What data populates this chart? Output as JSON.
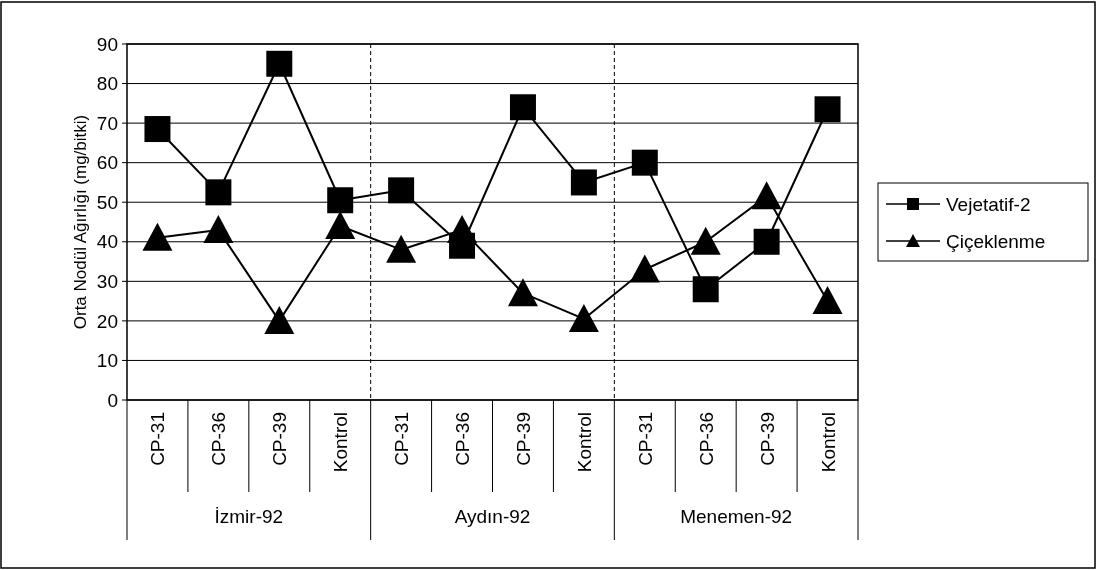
{
  "chart_data": {
    "type": "line",
    "ylabel": "Orta  Nodül Ağırlığı (mg/bitki)",
    "categories": [
      "CP-31",
      "CP-36",
      "CP-39",
      "Kontrol",
      "CP-31",
      "CP-36",
      "CP-39",
      "Kontrol",
      "CP-31",
      "CP-36",
      "CP-39",
      "Kontrol"
    ],
    "annotations": [
      "İzmir-92",
      "Aydın-92",
      "Menemen-92"
    ],
    "series": [
      {
        "name": "Vejetatif-2",
        "color": "#000000",
        "marker": "square",
        "values": [
          68.5,
          52.5,
          85,
          50.5,
          53,
          39,
          74,
          55,
          60,
          28,
          40,
          73.5
        ]
      },
      {
        "name": "Çiçeklenme",
        "color": "#000000",
        "marker": "triangle",
        "values": [
          41,
          43,
          20,
          44,
          38,
          43,
          27,
          20.5,
          33,
          40,
          51.5,
          25
        ]
      }
    ],
    "ylim": [
      0,
      90
    ],
    "yticks": [
      0,
      10,
      20,
      30,
      40,
      50,
      60,
      70,
      80,
      90
    ],
    "grid": "y",
    "legend": "right"
  }
}
